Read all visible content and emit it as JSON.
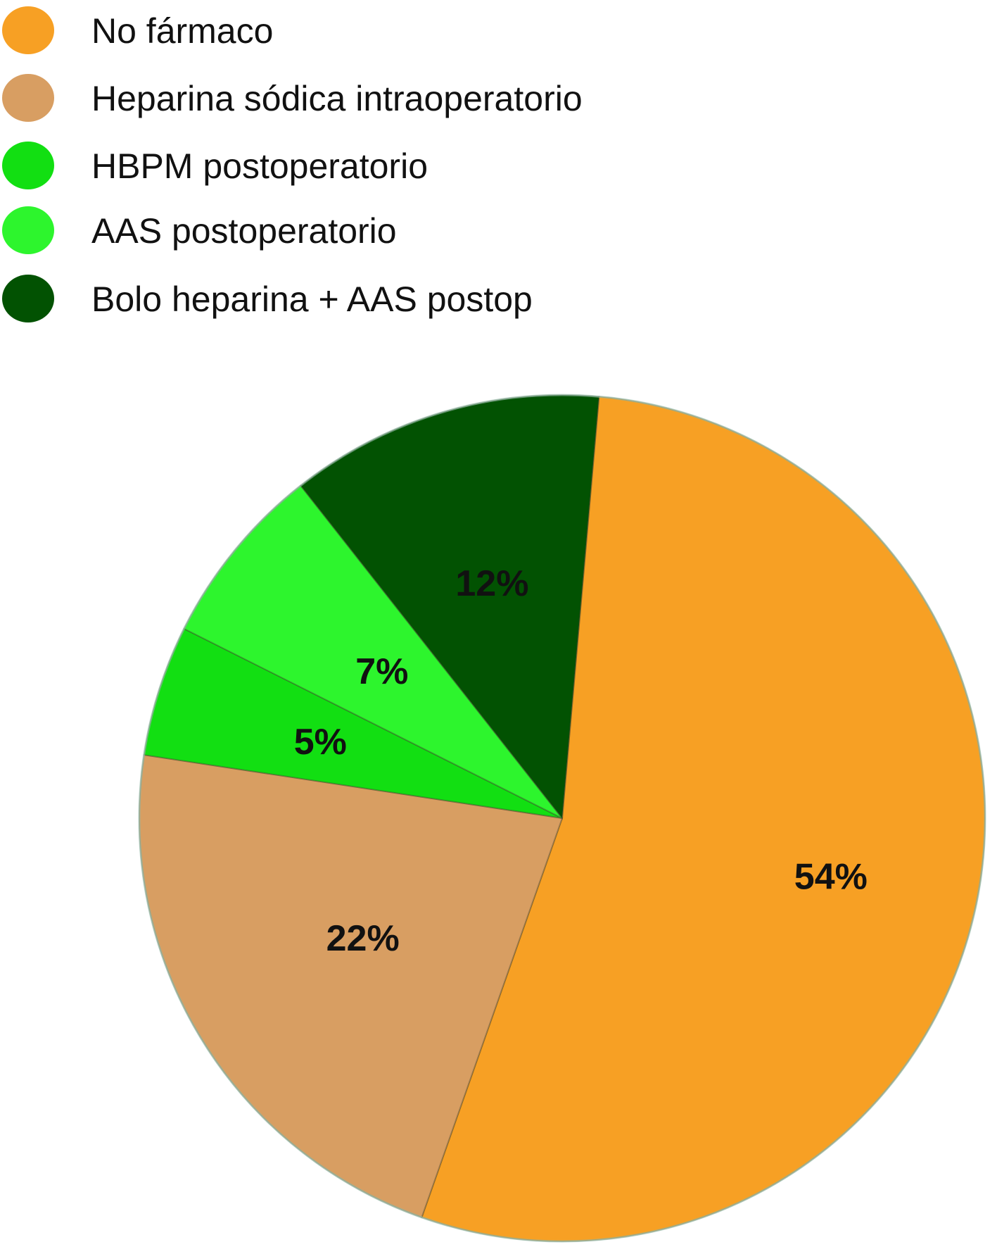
{
  "chart_data": {
    "type": "pie",
    "title": "",
    "legend_placement": "top-left",
    "categories": [
      "No fármaco",
      "Heparina sódica intraoperatorio",
      "HBPM postoperatorio",
      "AAS postoperatorio",
      "Bolo heparina + AAS postop"
    ],
    "values": [
      54,
      22,
      5,
      7,
      12
    ],
    "labels": [
      "54%",
      "22%",
      "5%",
      "7%",
      "12%"
    ],
    "colors": [
      "#F7A024",
      "#D89E62",
      "#12DF12",
      "#2DF52D",
      "#025202"
    ]
  }
}
